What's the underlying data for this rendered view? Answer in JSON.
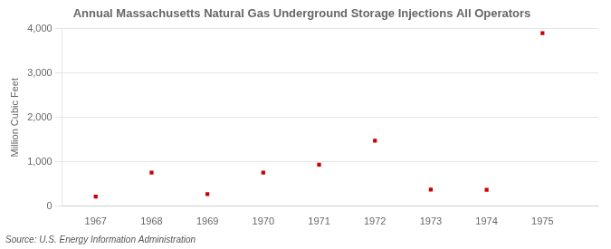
{
  "chart_data": {
    "type": "scatter",
    "title": "Annual Massachusetts Natural Gas Underground Storage Injections All Operators",
    "ylabel": "Million Cubic Feet",
    "source": "Source: U.S. Energy Information Administration",
    "x": [
      1967,
      1968,
      1969,
      1970,
      1971,
      1972,
      1973,
      1974,
      1975
    ],
    "values": [
      220,
      760,
      275,
      760,
      935,
      1475,
      375,
      370,
      3900
    ],
    "color": "#cc0000",
    "marker": "square",
    "xlim": [
      1966.4,
      1976.0
    ],
    "xticks": [
      1967,
      1968,
      1969,
      1970,
      1971,
      1972,
      1973,
      1974,
      1975
    ],
    "ylim": [
      0,
      4000
    ],
    "yticks": [
      0,
      {
        "value": 1000,
        "label": "1,000"
      },
      {
        "value": 2000,
        "label": "2,000"
      },
      {
        "value": 3000,
        "label": "3,000"
      },
      {
        "value": 4000,
        "label": "4,000"
      }
    ],
    "grid": "y"
  }
}
